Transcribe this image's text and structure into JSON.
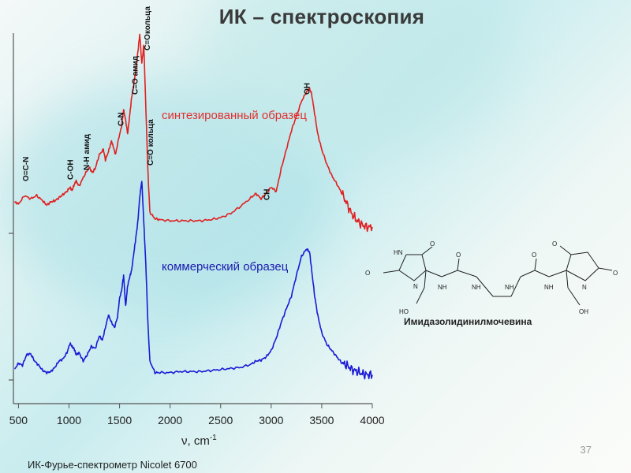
{
  "title": "ИК – спектроскопия",
  "slide_number": "37",
  "footer": "ИК-Фурье-спектрометр Nicolet 6700",
  "colors": {
    "synth": "#e02020",
    "commercial": "#1a1ad6",
    "label_synth": "#e03030",
    "label_comm": "#1a1ab0"
  },
  "chart_data": {
    "type": "line",
    "xlabel": "ν, cm",
    "xlabel_sup": "-1",
    "xlim": [
      450,
      4000
    ],
    "x_ticks": [
      500,
      1000,
      1500,
      2000,
      2500,
      3000,
      3500,
      4000
    ],
    "y_ticks_visible": false,
    "grid": false,
    "series": [
      {
        "name": "синтезированный образец",
        "color": "#e02020",
        "x": [
          460,
          500,
          560,
          620,
          680,
          740,
          780,
          820,
          860,
          900,
          940,
          980,
          1010,
          1030,
          1050,
          1070,
          1100,
          1150,
          1200,
          1230,
          1260,
          1300,
          1340,
          1360,
          1390,
          1420,
          1440,
          1460,
          1490,
          1520,
          1540,
          1560,
          1580,
          1600,
          1620,
          1640,
          1660,
          1680,
          1700,
          1720,
          1740,
          1760,
          1780,
          1800,
          1850,
          1900,
          2000,
          2100,
          2200,
          2300,
          2400,
          2500,
          2600,
          2700,
          2800,
          2850,
          2900,
          2950,
          3000,
          3050,
          3100,
          3150,
          3200,
          3250,
          3300,
          3350,
          3380,
          3400,
          3430,
          3460,
          3500,
          3550,
          3600,
          3650,
          3700,
          3750,
          3800,
          3850,
          3900,
          3950,
          4000
        ],
        "y": [
          0.3,
          0.28,
          0.36,
          0.33,
          0.36,
          0.31,
          0.27,
          0.3,
          0.31,
          0.34,
          0.37,
          0.4,
          0.44,
          0.41,
          0.46,
          0.5,
          0.45,
          0.55,
          0.63,
          0.58,
          0.62,
          0.75,
          0.8,
          0.7,
          0.78,
          0.88,
          0.82,
          0.75,
          0.9,
          1.02,
          1.18,
          1.08,
          0.95,
          1.12,
          1.3,
          1.42,
          1.55,
          1.72,
          1.9,
          1.62,
          1.8,
          1.2,
          0.6,
          0.2,
          0.14,
          0.13,
          0.12,
          0.12,
          0.12,
          0.12,
          0.13,
          0.15,
          0.19,
          0.26,
          0.34,
          0.38,
          0.33,
          0.38,
          0.44,
          0.4,
          0.62,
          0.8,
          0.98,
          1.12,
          1.26,
          1.35,
          1.38,
          1.33,
          1.14,
          0.95,
          0.8,
          0.66,
          0.55,
          0.47,
          0.38,
          0.28,
          0.18,
          0.12,
          0.08,
          0.06,
          0.06
        ]
      },
      {
        "name": "коммерческий образец",
        "color": "#1a1ad6",
        "x": [
          460,
          500,
          540,
          580,
          620,
          660,
          700,
          740,
          780,
          820,
          860,
          900,
          940,
          980,
          1010,
          1030,
          1050,
          1070,
          1100,
          1140,
          1180,
          1220,
          1260,
          1300,
          1330,
          1360,
          1390,
          1420,
          1450,
          1480,
          1500,
          1520,
          1540,
          1560,
          1580,
          1600,
          1620,
          1640,
          1660,
          1680,
          1700,
          1720,
          1740,
          1760,
          1780,
          1800,
          1850,
          1900,
          2000,
          2100,
          2200,
          2300,
          2400,
          2500,
          2600,
          2700,
          2800,
          2850,
          2900,
          2950,
          3000,
          3050,
          3100,
          3150,
          3200,
          3250,
          3300,
          3350,
          3380,
          3400,
          3430,
          3460,
          3500,
          3550,
          3600,
          3650,
          3700,
          3750,
          3800,
          3850,
          3900,
          3950,
          4000
        ],
        "y": [
          0.1,
          0.16,
          0.14,
          0.24,
          0.25,
          0.18,
          0.14,
          0.09,
          0.07,
          0.08,
          0.12,
          0.18,
          0.2,
          0.26,
          0.35,
          0.32,
          0.3,
          0.24,
          0.26,
          0.18,
          0.24,
          0.32,
          0.3,
          0.42,
          0.38,
          0.5,
          0.62,
          0.55,
          0.5,
          0.6,
          0.78,
          0.85,
          1.0,
          0.7,
          0.9,
          0.98,
          1.05,
          1.2,
          1.35,
          1.5,
          1.75,
          1.9,
          1.5,
          1.1,
          0.55,
          0.18,
          0.07,
          0.07,
          0.07,
          0.08,
          0.08,
          0.08,
          0.09,
          0.1,
          0.11,
          0.12,
          0.15,
          0.18,
          0.19,
          0.22,
          0.28,
          0.4,
          0.55,
          0.68,
          0.8,
          1.0,
          1.18,
          1.25,
          1.22,
          1.05,
          0.8,
          0.62,
          0.45,
          0.34,
          0.28,
          0.22,
          0.16,
          0.14,
          0.1,
          0.08,
          0.06,
          0.05,
          0.05
        ]
      }
    ],
    "annotations": [
      {
        "text": "O=C-N",
        "x": 600,
        "series": 0
      },
      {
        "text": "C-OH",
        "x": 1040,
        "series": 0
      },
      {
        "text": "N-H амид",
        "x": 1200,
        "series": 0
      },
      {
        "text": "C-N",
        "x": 1540,
        "series": 0
      },
      {
        "text": "C=O амид",
        "x": 1680,
        "series": 0
      },
      {
        "text": "C=Oкольца",
        "x": 1800,
        "series": 0
      },
      {
        "text": "C=O кольца",
        "x": 1830,
        "series": 0
      },
      {
        "text": "CH",
        "x": 2980,
        "series": 0
      },
      {
        "text": "OH",
        "x": 3380,
        "series": 0
      }
    ]
  },
  "structure": {
    "caption": "Имидазолидинилмочевина",
    "labels": [
      "O",
      "HN",
      "O",
      "N",
      "NH",
      "O",
      "NH",
      "NH",
      "O",
      "NH",
      "N",
      "O",
      "HO",
      "OH",
      "O"
    ]
  }
}
